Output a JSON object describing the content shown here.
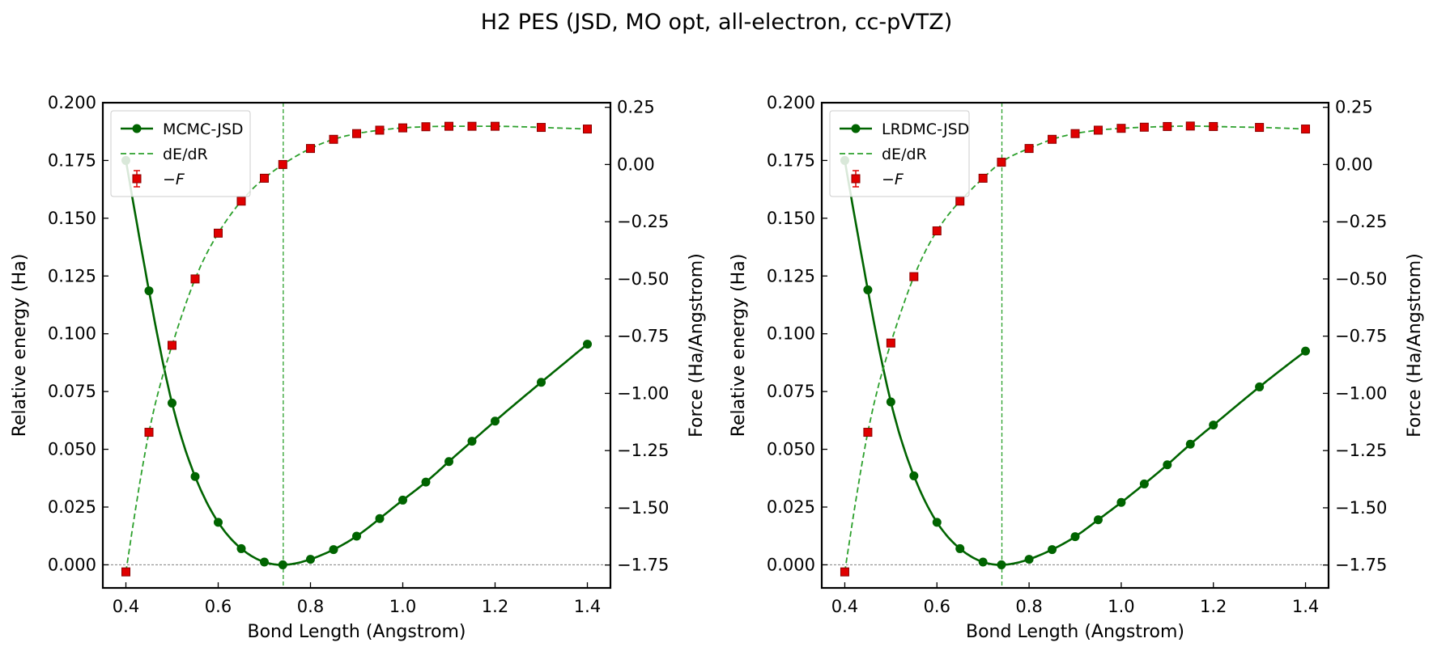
{
  "suptitle": "H2 PES  (JSD, MO opt, all-electron, cc-pVTZ)",
  "colors": {
    "energy": "#006400",
    "derivative": "#2ca02c",
    "force_face": "#e00000",
    "force_edge": "#8b0000",
    "ref": "#808080"
  },
  "chart_data": [
    {
      "type": "line",
      "xlabel": "Bond Length (Angstrom)",
      "ylabel": "Relative energy (Ha)",
      "y2label": "Force (Ha/Angstrom)",
      "xlim": [
        0.35,
        1.45
      ],
      "ylim": [
        -0.01,
        0.2
      ],
      "y2lim": [
        -1.85,
        0.27
      ],
      "xticks": [
        "0.4",
        "0.6",
        "0.8",
        "1.0",
        "1.2",
        "1.4"
      ],
      "yticks": [
        "0.000",
        "0.025",
        "0.050",
        "0.075",
        "0.100",
        "0.125",
        "0.150",
        "0.175",
        "0.200"
      ],
      "y2ticks": [
        "−1.75",
        "−1.50",
        "−1.25",
        "−1.00",
        "−0.75",
        "−0.50",
        "−0.25",
        "0.00",
        "0.25"
      ],
      "equilibrium_x": 0.741,
      "legend": {
        "placement": "top-left",
        "entries": [
          "MCMC-JSD",
          "dE/dR",
          "−F"
        ]
      },
      "x": [
        0.4,
        0.45,
        0.5,
        0.55,
        0.6,
        0.65,
        0.7,
        0.74,
        0.8,
        0.85,
        0.9,
        0.95,
        1.0,
        1.05,
        1.1,
        1.15,
        1.2,
        1.3,
        1.4
      ],
      "series": [
        {
          "name": "MCMC-JSD",
          "values": [
            0.175,
            0.1186,
            0.07,
            0.0382,
            0.0184,
            0.007,
            0.0012,
            0.0,
            0.0024,
            0.0066,
            0.0124,
            0.02,
            0.028,
            0.0358,
            0.0447,
            0.0535,
            0.0622,
            0.079,
            0.0955
          ]
        },
        {
          "name": "−F",
          "values": [
            -1.78,
            -1.17,
            -0.79,
            -0.5,
            -0.3,
            -0.16,
            -0.06,
            0.0,
            0.07,
            0.11,
            0.135,
            0.15,
            0.16,
            0.165,
            0.167,
            0.167,
            0.167,
            0.162,
            0.155
          ]
        }
      ]
    },
    {
      "type": "line",
      "xlabel": "Bond Length (Angstrom)",
      "ylabel": "Relative energy (Ha)",
      "y2label": "Force (Ha/Angstrom)",
      "xlim": [
        0.35,
        1.45
      ],
      "ylim": [
        -0.01,
        0.2
      ],
      "y2lim": [
        -1.85,
        0.27
      ],
      "xticks": [
        "0.4",
        "0.6",
        "0.8",
        "1.0",
        "1.2",
        "1.4"
      ],
      "yticks": [
        "0.000",
        "0.025",
        "0.050",
        "0.075",
        "0.100",
        "0.125",
        "0.150",
        "0.175",
        "0.200"
      ],
      "y2ticks": [
        "−1.75",
        "−1.50",
        "−1.25",
        "−1.00",
        "−0.75",
        "−0.50",
        "−0.25",
        "0.00",
        "0.25"
      ],
      "equilibrium_x": 0.741,
      "legend": {
        "placement": "top-left",
        "entries": [
          "LRDMC-JSD",
          "dE/dR",
          "−F"
        ]
      },
      "x": [
        0.4,
        0.45,
        0.5,
        0.55,
        0.6,
        0.65,
        0.7,
        0.74,
        0.8,
        0.85,
        0.9,
        0.95,
        1.0,
        1.05,
        1.1,
        1.15,
        1.2,
        1.3,
        1.4
      ],
      "series": [
        {
          "name": "LRDMC-JSD",
          "values": [
            0.175,
            0.119,
            0.0705,
            0.0385,
            0.0184,
            0.007,
            0.0012,
            0.0,
            0.0024,
            0.0066,
            0.0122,
            0.0195,
            0.027,
            0.035,
            0.0433,
            0.0522,
            0.0605,
            0.077,
            0.0925
          ]
        },
        {
          "name": "−F",
          "values": [
            -1.78,
            -1.17,
            -0.78,
            -0.49,
            -0.29,
            -0.16,
            -0.06,
            0.01,
            0.07,
            0.11,
            0.135,
            0.15,
            0.158,
            0.163,
            0.166,
            0.168,
            0.166,
            0.162,
            0.155
          ]
        }
      ]
    }
  ]
}
